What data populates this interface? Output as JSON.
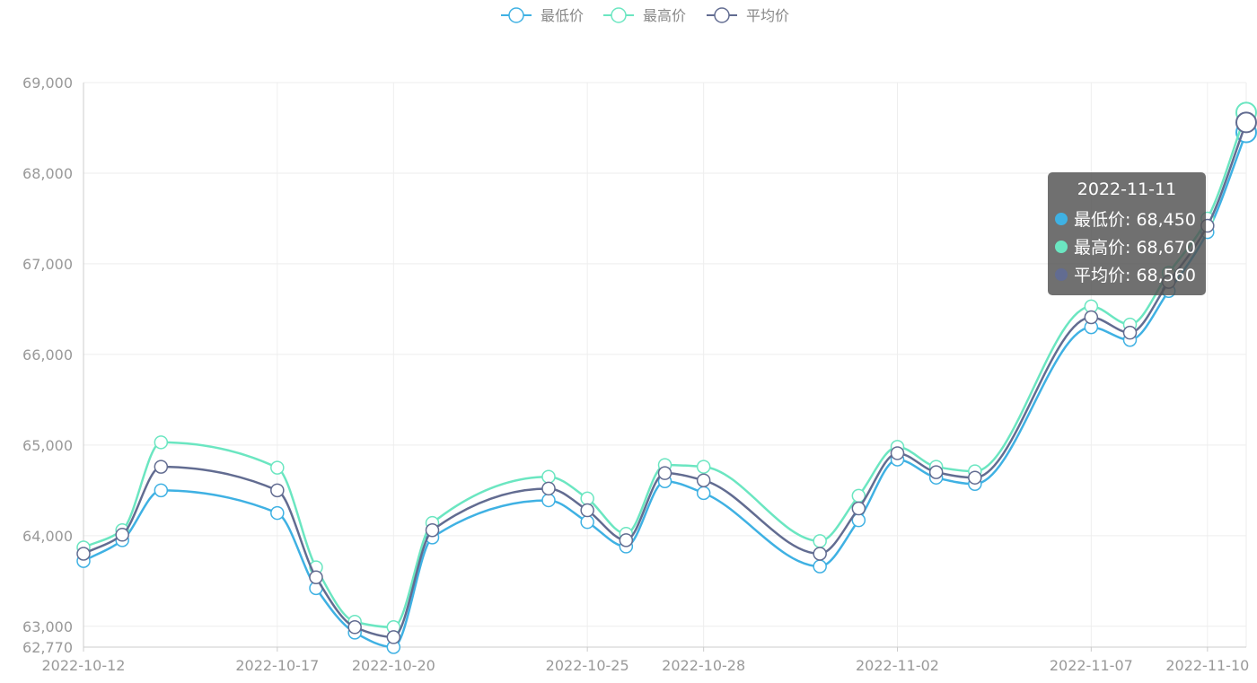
{
  "chart_data": {
    "type": "line",
    "smooth": true,
    "x": [
      "2022-10-12",
      "2022-10-13",
      "2022-10-14",
      "2022-10-17",
      "2022-10-18",
      "2022-10-19",
      "2022-10-20",
      "2022-10-21",
      "2022-10-24",
      "2022-10-25",
      "2022-10-26",
      "2022-10-27",
      "2022-10-28",
      "2022-10-31",
      "2022-11-01",
      "2022-11-02",
      "2022-11-03",
      "2022-11-04",
      "2022-11-07",
      "2022-11-08",
      "2022-11-09",
      "2022-11-10",
      "2022-11-11"
    ],
    "x_tick_labels": [
      "2022-10-12",
      "2022-10-17",
      "2022-10-20",
      "2022-10-25",
      "2022-10-28",
      "2022-11-02",
      "2022-11-07",
      "2022-11-10"
    ],
    "y_tick_labels": [
      "62,770",
      "63,000",
      "64,000",
      "65,000",
      "66,000",
      "67,000",
      "68,000",
      "69,000"
    ],
    "ylim": [
      62770,
      69000
    ],
    "y_ticks": [
      62770,
      63000,
      64000,
      65000,
      66000,
      67000,
      68000,
      69000
    ],
    "grid": true,
    "legend_position": "top-center",
    "series": [
      {
        "name": "最低价",
        "color": "#3fb1e3",
        "values": [
          63720,
          63950,
          64500,
          64250,
          63420,
          62930,
          62770,
          63980,
          64390,
          64150,
          63880,
          64600,
          64470,
          63660,
          64170,
          64840,
          64640,
          64570,
          66300,
          66160,
          66700,
          67350,
          68450
        ]
      },
      {
        "name": "最高价",
        "color": "#6be6c1",
        "values": [
          63870,
          64060,
          65030,
          64750,
          63650,
          63050,
          62990,
          64140,
          64650,
          64410,
          64020,
          64780,
          64760,
          63940,
          64440,
          64980,
          64760,
          64710,
          66530,
          66330,
          66900,
          67500,
          68670
        ]
      },
      {
        "name": "平均价",
        "color": "#626c91",
        "values": [
          63800,
          64010,
          64760,
          64500,
          63540,
          62990,
          62880,
          64060,
          64520,
          64280,
          63950,
          64690,
          64610,
          63800,
          64300,
          64910,
          64700,
          64640,
          66410,
          66240,
          66800,
          67420,
          68560
        ]
      }
    ],
    "tooltip": {
      "title": "2022-11-11",
      "rows": [
        {
          "label": "最低价: 68,450",
          "color": "#3fb1e3"
        },
        {
          "label": "最高价: 68,670",
          "color": "#6be6c1"
        },
        {
          "label": "平均价: 68,560",
          "color": "#626c91"
        }
      ]
    }
  }
}
